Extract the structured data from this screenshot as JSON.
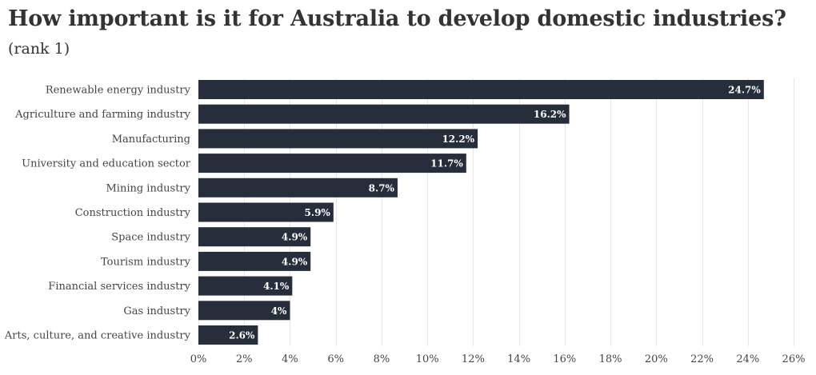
{
  "chart_data": {
    "type": "bar",
    "orientation": "horizontal",
    "title": "How important is it for Australia to develop domestic industries?",
    "subtitle": "(rank 1)",
    "categories": [
      "Renewable energy industry",
      "Agriculture and farming industry",
      "Manufacturing",
      "University and education sector",
      "Mining industry",
      "Construction industry",
      "Space industry",
      "Tourism industry",
      "Financial services industry",
      "Gas industry",
      "Arts, culture, and creative industry"
    ],
    "values": [
      24.7,
      16.2,
      12.2,
      11.7,
      8.7,
      5.9,
      4.9,
      4.9,
      4.1,
      4,
      2.6
    ],
    "value_labels": [
      "24.7%",
      "16.2%",
      "12.2%",
      "11.7%",
      "8.7%",
      "5.9%",
      "4.9%",
      "4.9%",
      "4.1%",
      "4%",
      "2.6%"
    ],
    "x_ticks": [
      0,
      2,
      4,
      6,
      8,
      10,
      12,
      14,
      16,
      18,
      20,
      22,
      24,
      26
    ],
    "x_tick_labels": [
      "0%",
      "2%",
      "4%",
      "6%",
      "8%",
      "10%",
      "12%",
      "14%",
      "16%",
      "18%",
      "20%",
      "22%",
      "24%",
      "26%"
    ],
    "xlim": [
      0,
      26
    ],
    "xlabel": "",
    "ylabel": "",
    "grid": true,
    "legend": "none",
    "bar_color": "#262d3b",
    "grid_color": "#e6e6e6",
    "value_label_color": "#ffffff"
  }
}
